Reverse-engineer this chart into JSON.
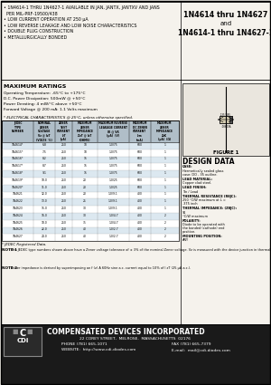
{
  "bullet_lines": [
    "• 1N4614-1 THRU 1N4627-1 AVAILABLE IN JAN, JANTX, JANTXV AND JANS",
    "  PER MIL-PRF-19500/438",
    "• LOW CURRENT OPERATION AT 250 μA",
    "• LOW REVERSE LEAKAGE AND LOW NOISE CHARACTERISTICS",
    "• DOUBLE PLUG CONSTRUCTION",
    "• METALLURGICALLY BONDED"
  ],
  "title_right1": "1N4614 thru 1N4627",
  "title_right2": "and",
  "title_right3": "1N4614-1 thru 1N4627-1",
  "max_ratings_title": "MAXIMUM RATINGS",
  "max_ratings": [
    "Operating Temperature: -65°C to +175°C",
    "D.C. Power Dissipation: 500mW @ +50°C",
    "Power Derating: 4 mW/°C above +50°C",
    "Forward Voltage @ 200 mA: 1.1 Volts maximum"
  ],
  "elec_title": "* ELECTRICAL CHARACTERISTICS @ 25°C, unless otherwise specified.",
  "col_headers": [
    "JEDEC\nTYPE\nNUMBER",
    "NOMINAL\nZENER\nVOLTAGE\nVz @ IzT\n(VOLTS  %)",
    "ZENER\nTEST\nCURRENT\nIzT\n(μA)",
    "MAXIMUM\nZENER\nIMPEDANCE\nZzT @ IzT\n(OHMS)",
    "MAXIMUM REVERSE\nLEAKAGE CURRENT\nIR @ VR\n(μA)  (V)",
    "MAXIMUM\nDC ZENER\nCURRENT\nIzm\n(mA)",
    "MAXIMUM\nZENER\nIMPEDANCE\nZzK\n(μA)  (Ω)"
  ],
  "table_rows": [
    [
      "1N4614*",
      "6.8",
      "250",
      "10",
      "1.0",
      "75",
      "600",
      "1"
    ],
    [
      "1N4615*",
      "7.5",
      "250",
      "10",
      "1.0",
      "75",
      "600",
      "1"
    ],
    [
      "1N4616*",
      "8.2",
      "250",
      "15",
      "1.0",
      "75",
      "600",
      "1"
    ],
    [
      "1N4617*",
      "8.7",
      "250",
      "15",
      "1.0",
      "75",
      "600",
      "1"
    ],
    [
      "1N4618*",
      "9.1",
      "250",
      "15",
      "1.0",
      "75",
      "600",
      "1"
    ],
    [
      "1N4619*",
      "10.0",
      "250",
      "20",
      "1.0",
      "25",
      "600",
      "1"
    ],
    [
      "1N4620*",
      "11.0",
      "250",
      "20",
      "1.0",
      "25",
      "600",
      "1"
    ],
    [
      "1N4621",
      "12.0",
      "250",
      "20",
      "1.0",
      "9.1",
      "400",
      "1"
    ],
    [
      "1N4622",
      "13.0",
      "250",
      "25",
      "1.0",
      "9.1",
      "400",
      "1"
    ],
    [
      "1N4623",
      "15.0",
      "250",
      "30",
      "1.0",
      "9.1",
      "400",
      "1"
    ],
    [
      "1N4624",
      "16.0",
      "250",
      "30",
      "1.0",
      "4.7",
      "400",
      "2"
    ],
    [
      "1N4625",
      "18.0",
      "250",
      "35",
      "1.0",
      "4.7",
      "400",
      "2"
    ],
    [
      "1N4626",
      "22.0",
      "250",
      "40",
      "1.0",
      "2.7",
      "400",
      "2"
    ],
    [
      "1N4627",
      "24.0",
      "250",
      "40",
      "1.0",
      "2.7",
      "400",
      "2"
    ]
  ],
  "jedec_note": "* JEDEC Registered Data.",
  "note1_label": "NOTE 1",
  "note1_text": "The JEDEC type numbers shown above have a Zener voltage tolerance of ± 3% of the nominal Zener voltage. Vz is measured with the device junction in thermal equilibrium at an ambient temperature of 25°C ± 1°C.  A 'C' suffix denotes a ± 2% tolerance and a 'D' suffix denotes a ± 1% tolerance.",
  "note2_label": "NOTE 2",
  "note2_text": "Zener impedance is derived by superimposing an f (z) A 60Hz sine a.c. current equal to 10% of I zT (25 μA a.c.).",
  "figure_label": "FIGURE 1",
  "design_title": "DESIGN DATA",
  "design_items": [
    [
      "CASE:",
      "Hermetically sealed glass\ncase: DO - 35 outline."
    ],
    [
      "LEAD MATERIAL:",
      "Copper clad steel."
    ],
    [
      "LEAD FINISH:",
      "Tin / Lead"
    ],
    [
      "THERMAL RESISTANCE (RθJC):",
      "250 °C/W maximum at L =\n.375 inch"
    ],
    [
      "THERMAL IMPEDANCE: (ZθJC):",
      "91\n°C/W maximum"
    ],
    [
      "POLARITY:",
      "Diode to be operated with\nthe banded (cathode) end\npositive."
    ],
    [
      "MOUNTING POSITION:",
      "ANY"
    ]
  ],
  "footer_company": "COMPENSATED DEVICES INCORPORATED",
  "footer_address": "22 COREY STREET,  MELROSE,  MASSACHUSETTS  02176",
  "footer_phone": "PHONE (781) 665-1071",
  "footer_fax": "FAX (781) 665-7379",
  "footer_website": "WEBSITE:  http://www.cdi-diodes.com",
  "footer_email": "E-mail:  mail@cdi-diodes.com",
  "bg_color": "#f5f2ec",
  "header_bg": "#b0bec8",
  "row_alt": "#dce8f0",
  "footer_dark": "#1a1a1a",
  "divider_col": "#555555",
  "watermark": "#c5d5e5"
}
